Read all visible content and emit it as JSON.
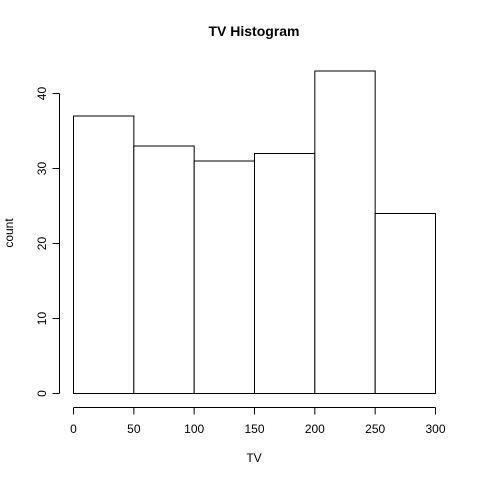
{
  "chart_data": {
    "type": "bar",
    "title": "TV Histogram",
    "xlabel": "TV",
    "ylabel": "count",
    "bins": [
      {
        "start": 0,
        "end": 50,
        "value": 37
      },
      {
        "start": 50,
        "end": 100,
        "value": 33
      },
      {
        "start": 100,
        "end": 150,
        "value": 31
      },
      {
        "start": 150,
        "end": 200,
        "value": 32
      },
      {
        "start": 200,
        "end": 250,
        "value": 43
      },
      {
        "start": 250,
        "end": 300,
        "value": 24
      }
    ],
    "xlim": [
      0,
      300
    ],
    "ylim": [
      0,
      43
    ],
    "x_ticks": [
      0,
      50,
      100,
      150,
      200,
      250,
      300
    ],
    "y_ticks": [
      0,
      10,
      20,
      30,
      40
    ],
    "grid": false,
    "bar_fill": "#ffffff",
    "bar_stroke": "#000000"
  }
}
